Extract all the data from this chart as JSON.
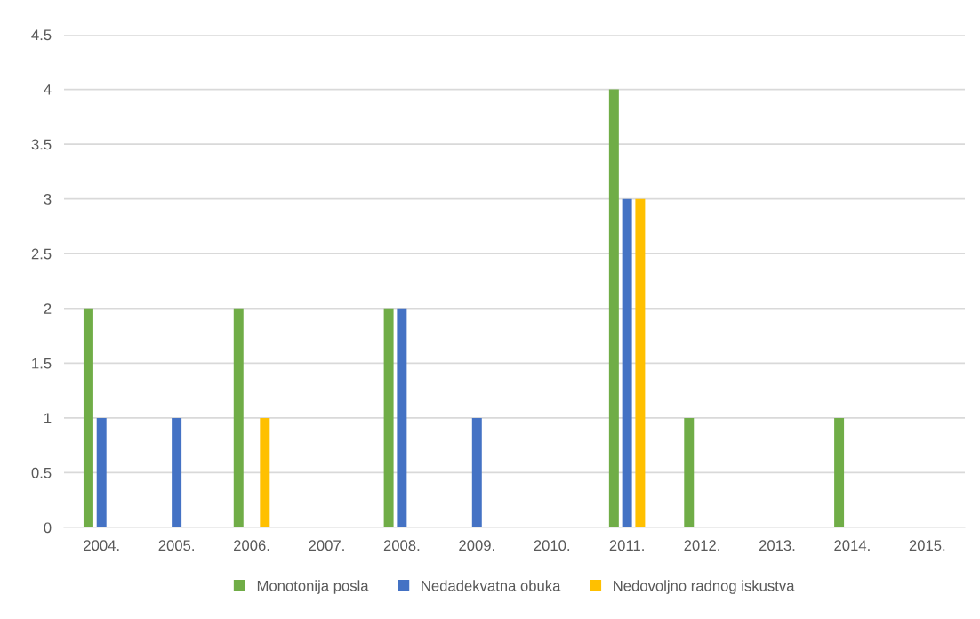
{
  "chart_data": {
    "type": "bar",
    "categories": [
      "2004.",
      "2005.",
      "2006.",
      "2007.",
      "2008.",
      "2009.",
      "2010.",
      "2011.",
      "2012.",
      "2013.",
      "2014.",
      "2015."
    ],
    "series": [
      {
        "name": "Monotonija posla",
        "color": "#70ad47",
        "values": [
          2,
          0,
          2,
          0,
          2,
          0,
          0,
          4,
          1,
          0,
          1,
          0
        ]
      },
      {
        "name": "Nedadekvatna obuka",
        "color": "#4472c4",
        "values": [
          1,
          1,
          0,
          0,
          2,
          1,
          0,
          3,
          0,
          0,
          0,
          0
        ]
      },
      {
        "name": "Nedovoljno radnog iskustva",
        "color": "#ffc000",
        "values": [
          0,
          0,
          1,
          0,
          0,
          0,
          0,
          3,
          0,
          0,
          0,
          0
        ]
      }
    ],
    "ylim": [
      0,
      4.5
    ],
    "yticks": [
      0,
      0.5,
      1,
      1.5,
      2,
      2.5,
      3,
      3.5,
      4,
      4.5
    ],
    "grid": "y",
    "legend": "bottom"
  }
}
